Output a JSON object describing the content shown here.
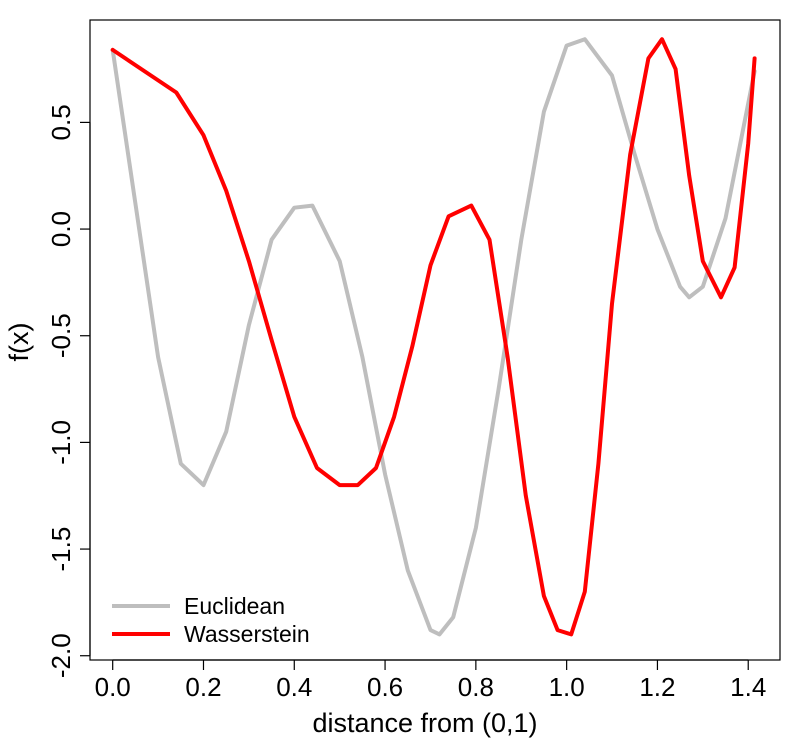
{
  "chart_data": {
    "type": "line",
    "title": "",
    "xlabel": "distance from (0,1)",
    "ylabel": "f(x)",
    "xlim": [
      -0.05,
      1.47
    ],
    "ylim": [
      -2.02,
      0.98
    ],
    "xticks": [
      0.0,
      0.2,
      0.4,
      0.6,
      0.8,
      1.0,
      1.2,
      1.4
    ],
    "xtick_labels": [
      "0.0",
      "0.2",
      "0.4",
      "0.6",
      "0.8",
      "1.0",
      "1.2",
      "1.4"
    ],
    "yticks": [
      -2.0,
      -1.5,
      -1.0,
      -0.5,
      0.0,
      0.5
    ],
    "ytick_labels": [
      "-2.0",
      "-1.5",
      "-1.0",
      "-0.5",
      "0.0",
      "0.5"
    ],
    "grid": false,
    "legend": {
      "placement": "bottom-left"
    },
    "series": [
      {
        "name": "Euclidean",
        "color": "#bebebe",
        "x": [
          0.0,
          0.05,
          0.1,
          0.15,
          0.2,
          0.25,
          0.3,
          0.35,
          0.4,
          0.44,
          0.5,
          0.55,
          0.6,
          0.65,
          0.7,
          0.72,
          0.75,
          0.8,
          0.85,
          0.9,
          0.95,
          1.0,
          1.04,
          1.1,
          1.15,
          1.2,
          1.25,
          1.27,
          1.3,
          1.35,
          1.414
        ],
        "y": [
          0.84,
          0.12,
          -0.6,
          -1.1,
          -1.2,
          -0.95,
          -0.45,
          -0.05,
          0.1,
          0.11,
          -0.15,
          -0.6,
          -1.15,
          -1.6,
          -1.88,
          -1.9,
          -1.82,
          -1.4,
          -0.75,
          -0.05,
          0.55,
          0.86,
          0.89,
          0.72,
          0.35,
          0.0,
          -0.27,
          -0.32,
          -0.27,
          0.05,
          0.74
        ]
      },
      {
        "name": "Wasserstein",
        "color": "#ff0000",
        "x": [
          0.0,
          0.14,
          0.2,
          0.25,
          0.3,
          0.35,
          0.4,
          0.45,
          0.5,
          0.54,
          0.58,
          0.62,
          0.66,
          0.7,
          0.74,
          0.79,
          0.83,
          0.87,
          0.91,
          0.95,
          0.98,
          1.01,
          1.04,
          1.07,
          1.1,
          1.14,
          1.18,
          1.21,
          1.24,
          1.27,
          1.3,
          1.34,
          1.37,
          1.4,
          1.414
        ],
        "y": [
          0.84,
          0.64,
          0.44,
          0.18,
          -0.15,
          -0.52,
          -0.88,
          -1.12,
          -1.2,
          -1.2,
          -1.12,
          -0.88,
          -0.55,
          -0.17,
          0.06,
          0.11,
          -0.05,
          -0.6,
          -1.25,
          -1.72,
          -1.88,
          -1.9,
          -1.7,
          -1.1,
          -0.35,
          0.35,
          0.8,
          0.89,
          0.75,
          0.25,
          -0.15,
          -0.32,
          -0.18,
          0.4,
          0.8
        ]
      }
    ]
  }
}
